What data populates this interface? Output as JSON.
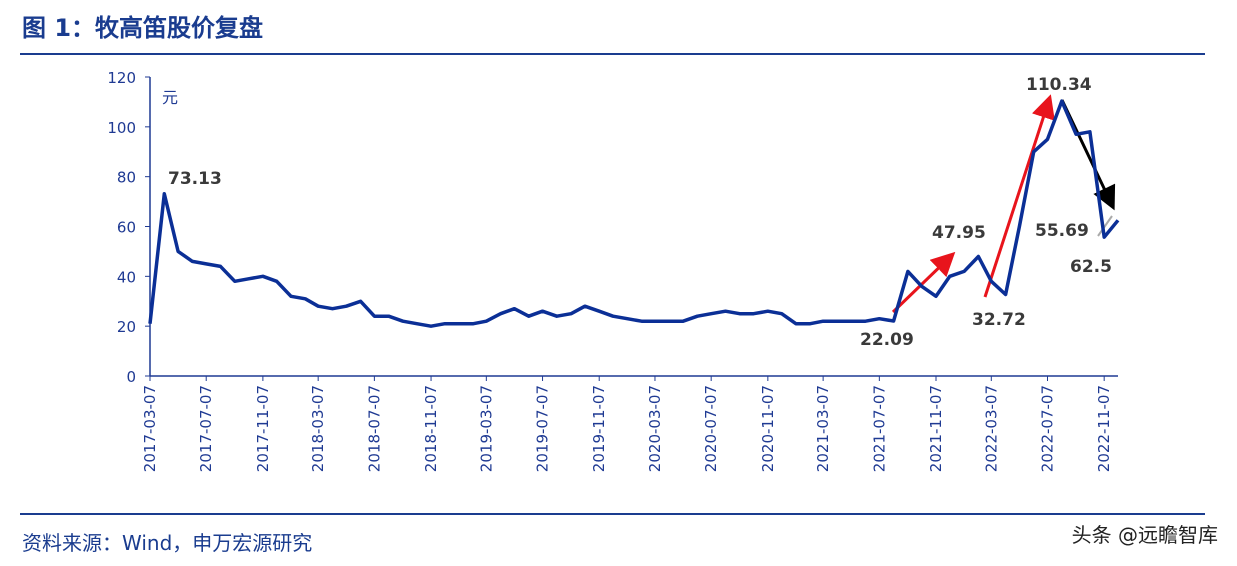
{
  "chart_data": {
    "type": "line",
    "title": "图 1：牧高笛股价复盘",
    "y_label": "元",
    "source": "资料来源：Wind，申万宏源研究",
    "watermark": "头条 @远瞻智库",
    "x": [
      "2017-03-07",
      "2017-04-07",
      "2017-05-07",
      "2017-06-07",
      "2017-07-07",
      "2017-08-07",
      "2017-09-07",
      "2017-10-07",
      "2017-11-07",
      "2017-12-07",
      "2018-01-07",
      "2018-02-07",
      "2018-03-07",
      "2018-04-07",
      "2018-05-07",
      "2018-06-07",
      "2018-07-07",
      "2018-08-07",
      "2018-09-07",
      "2018-10-07",
      "2018-11-07",
      "2018-12-07",
      "2019-01-07",
      "2019-02-07",
      "2019-03-07",
      "2019-04-07",
      "2019-05-07",
      "2019-06-07",
      "2019-07-07",
      "2019-08-07",
      "2019-09-07",
      "2019-10-07",
      "2019-11-07",
      "2019-12-07",
      "2020-01-07",
      "2020-02-07",
      "2020-03-07",
      "2020-04-07",
      "2020-05-07",
      "2020-06-07",
      "2020-07-07",
      "2020-08-07",
      "2020-09-07",
      "2020-10-07",
      "2020-11-07",
      "2020-12-07",
      "2021-01-07",
      "2021-02-07",
      "2021-03-07",
      "2021-04-07",
      "2021-05-07",
      "2021-06-07",
      "2021-07-07",
      "2021-08-07",
      "2021-09-07",
      "2021-10-07",
      "2021-11-07",
      "2021-12-07",
      "2022-01-07",
      "2022-02-07",
      "2022-03-07",
      "2022-04-07",
      "2022-05-07",
      "2022-06-07",
      "2022-07-07",
      "2022-08-07",
      "2022-09-07",
      "2022-10-07",
      "2022-11-07",
      "2022-12-07"
    ],
    "series": [
      {
        "name": "牧高笛",
        "color": "#0b2f96",
        "values": [
          21,
          73.13,
          50,
          46,
          45,
          44,
          38,
          39,
          40,
          38,
          32,
          31,
          28,
          27,
          28,
          30,
          24,
          24,
          22,
          21,
          20,
          21,
          21,
          21,
          22,
          25,
          27,
          24,
          26,
          24,
          25,
          28,
          26,
          24,
          23,
          22,
          22,
          22,
          22,
          24,
          25,
          26,
          25,
          25,
          26,
          25,
          21,
          21,
          22,
          22,
          22,
          22,
          23,
          22.09,
          42,
          36,
          32,
          40,
          42,
          47.95,
          38,
          32.72,
          60,
          90,
          95,
          110.34,
          97,
          98,
          55.69,
          62.5
        ]
      }
    ],
    "annotations": [
      {
        "x": "2017-04-07",
        "value": 73.13
      },
      {
        "x": "2022-02-07",
        "value": 47.95
      },
      {
        "x": "2021-08-07",
        "value": 22.09
      },
      {
        "x": "2022-04-07",
        "value": 32.72
      },
      {
        "x": "2022-08-07",
        "value": 110.34
      },
      {
        "x": "2022-11-07",
        "value": 55.69
      },
      {
        "x": "2022-12-07",
        "value": 62.5
      }
    ],
    "xlim": [
      "2017-03-07",
      "2022-12-07"
    ],
    "xticks": [
      "2017-03-07",
      "2017-07-07",
      "2017-11-07",
      "2018-03-07",
      "2018-07-07",
      "2018-11-07",
      "2019-03-07",
      "2019-07-07",
      "2019-11-07",
      "2020-03-07",
      "2020-07-07",
      "2020-11-07",
      "2021-03-07",
      "2021-07-07",
      "2021-11-07",
      "2022-03-07",
      "2022-07-07",
      "2022-11-07"
    ],
    "ylim": [
      0,
      120
    ],
    "yticks": [
      0,
      20,
      40,
      60,
      80,
      100,
      120
    ]
  }
}
